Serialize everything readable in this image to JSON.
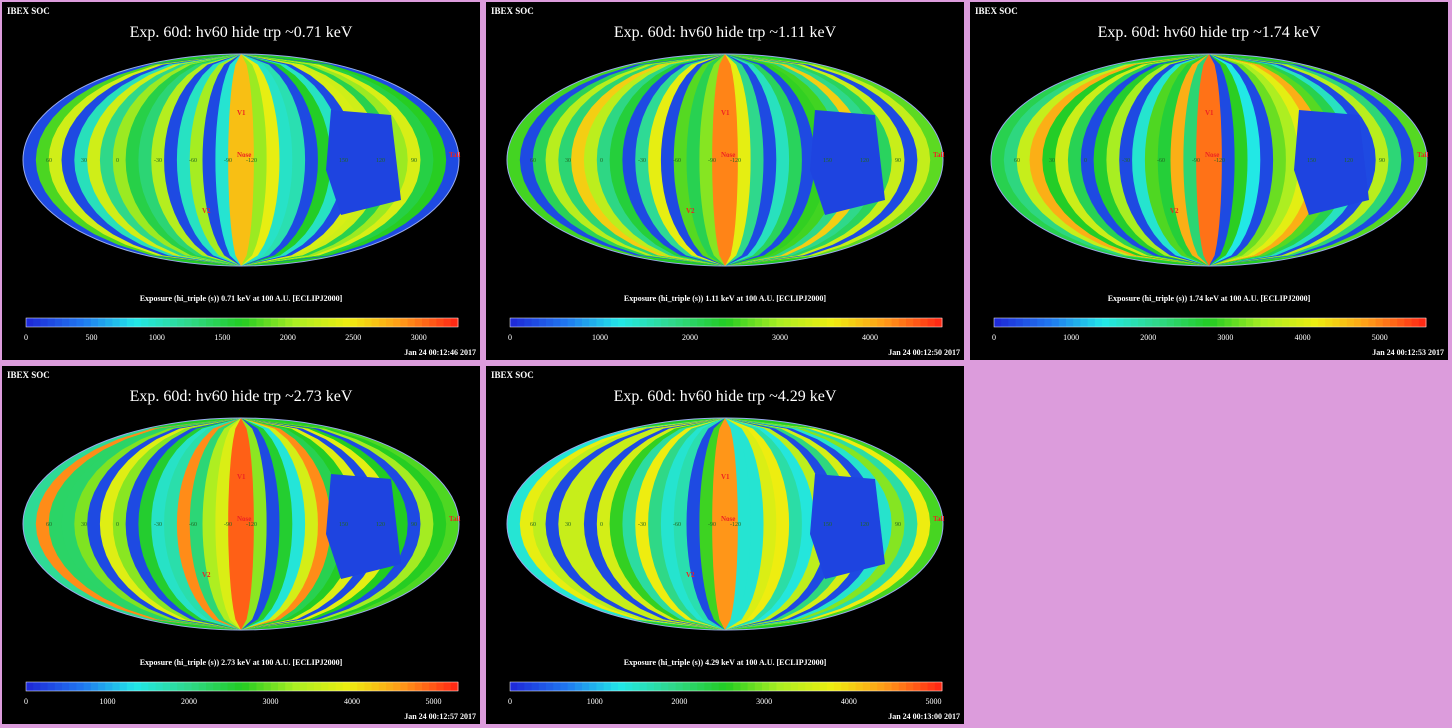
{
  "header_text": "IBEX SOC",
  "colors": {
    "background": "#000000",
    "page": "#dc9cdc"
  },
  "colormap": [
    "#1e2bd8",
    "#1f78f0",
    "#22e8e8",
    "#2fd88a",
    "#22cc22",
    "#aaee22",
    "#eeee10",
    "#ff9a18",
    "#ff2a14"
  ],
  "panels": [
    {
      "title": "Exp.   60d: hv60 hide trp ~0.71 keV",
      "colorbar_label": "Exposure (hi_triple (s))  0.71 keV at 100 A.U. [ECLIPJ2000]",
      "timestamp": "Jan 24 00:12:46 2017",
      "vmax": 3300,
      "ticks": [
        "0",
        "500",
        "1000",
        "1500",
        "2000",
        "2500",
        "3000"
      ],
      "tick_values": [
        0,
        500,
        1000,
        1500,
        2000,
        2500,
        3000
      ],
      "strength": 0.55
    },
    {
      "title": "Exp.   60d: hv60 hide trp ~1.11 keV",
      "colorbar_label": "Exposure (hi_triple (s))  1.11 keV at 100 A.U. [ECLIPJ2000]",
      "timestamp": "Jan 24 00:12:50 2017",
      "vmax": 4800,
      "ticks": [
        "0",
        "1000",
        "2000",
        "3000",
        "4000"
      ],
      "tick_values": [
        0,
        1000,
        2000,
        3000,
        4000
      ],
      "strength": 0.75
    },
    {
      "title": "Exp.   60d: hv60 hide trp ~1.74 keV",
      "colorbar_label": "Exposure (hi_triple (s))  1.74 keV at 100 A.U. [ECLIPJ2000]",
      "timestamp": "Jan 24 00:12:53 2017",
      "vmax": 5600,
      "ticks": [
        "0",
        "1000",
        "2000",
        "3000",
        "4000",
        "5000"
      ],
      "tick_values": [
        0,
        1000,
        2000,
        3000,
        4000,
        5000
      ],
      "strength": 0.8
    },
    {
      "title": "Exp.   60d: hv60 hide trp ~2.73 keV",
      "colorbar_label": "Exposure (hi_triple (s))  2.73 keV at 100 A.U. [ECLIPJ2000]",
      "timestamp": "Jan 24 00:12:57 2017",
      "vmax": 5300,
      "ticks": [
        "0",
        "1000",
        "2000",
        "3000",
        "4000",
        "5000"
      ],
      "tick_values": [
        0,
        1000,
        2000,
        3000,
        4000,
        5000
      ],
      "strength": 0.85
    },
    {
      "title": "Exp.   60d: hv60 hide trp ~4.29 keV",
      "colorbar_label": "Exposure (hi_triple (s))  4.29 keV at 100 A.U. [ECLIPJ2000]",
      "timestamp": "Jan 24 00:13:00 2017",
      "vmax": 5100,
      "ticks": [
        "0",
        "1000",
        "2000",
        "3000",
        "4000",
        "5000"
      ],
      "tick_values": [
        0,
        1000,
        2000,
        3000,
        4000,
        5000
      ],
      "strength": 0.7
    }
  ],
  "map_labels": {
    "longitude_ticks": [
      "60",
      "30",
      "0",
      "-30",
      "-60",
      "-90",
      "-120",
      "150",
      "120",
      "90"
    ],
    "markers": [
      "V1",
      "V2",
      "Nose",
      "Tail"
    ]
  },
  "chart_data": {
    "type": "heatmap",
    "projection": "mollweide all-sky",
    "quantity": "Exposure (hi_triple (s))",
    "energies_keV": [
      0.71,
      1.11,
      1.74,
      2.73,
      4.29
    ],
    "colorbar_ranges": [
      [
        0,
        3300
      ],
      [
        0,
        4800
      ],
      [
        0,
        5600
      ],
      [
        0,
        5300
      ],
      [
        0,
        5100
      ]
    ]
  }
}
